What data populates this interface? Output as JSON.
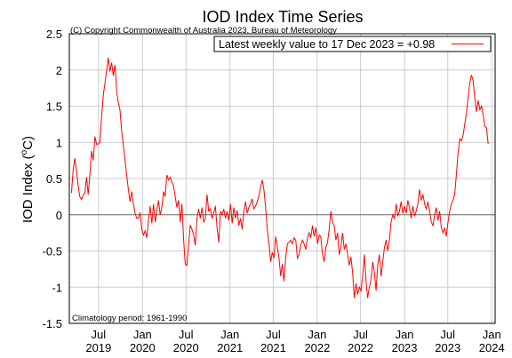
{
  "chart_data": {
    "type": "line",
    "title": "IOD Index Time Series",
    "copyright": "(C) Copyright Commonwealth of Australia 2023, Bureau of Meteorology",
    "ylabel": "IOD Index (°C)",
    "ylabel_parts": {
      "prefix": "IOD Index (",
      "sup": "o",
      "suffix": "C)"
    },
    "climatology_note": "Climatology period: 1961-1990",
    "legend": "Latest weekly value to 17 Dec 2023 = +0.98",
    "ylim": [
      -1.5,
      2.5
    ],
    "y_ticks": [
      -1.5,
      -1,
      -0.5,
      0,
      0.5,
      1,
      1.5,
      2,
      2.5
    ],
    "y_tick_labels": [
      "-1.5",
      "-1",
      "-0.5",
      "0",
      "0.5",
      "1",
      "1.5",
      "2",
      "2.5"
    ],
    "xlim": [
      "2019-03-01",
      "2024-01-15"
    ],
    "x_ticks": [
      {
        "date": "2019-07-01",
        "top": "Jul",
        "bottom": "2019"
      },
      {
        "date": "2020-01-01",
        "top": "Jan",
        "bottom": "2020"
      },
      {
        "date": "2020-07-01",
        "top": "Jul",
        "bottom": "2020"
      },
      {
        "date": "2021-01-01",
        "top": "Jan",
        "bottom": "2021"
      },
      {
        "date": "2021-07-01",
        "top": "Jul",
        "bottom": "2021"
      },
      {
        "date": "2022-01-01",
        "top": "Jan",
        "bottom": "2022"
      },
      {
        "date": "2022-07-01",
        "top": "Jul",
        "bottom": "2022"
      },
      {
        "date": "2023-01-01",
        "top": "Jan",
        "bottom": "2023"
      },
      {
        "date": "2023-07-01",
        "top": "Jul",
        "bottom": "2023"
      },
      {
        "date": "2024-01-01",
        "top": "Jan",
        "bottom": "2024"
      }
    ],
    "grid": true,
    "legend_position": "top-right",
    "colors": {
      "series": "#ff0000",
      "grid": "#cccccc",
      "zero_line": "#666666"
    },
    "series": [
      {
        "name": "Latest weekly value to 17 Dec 2023 = +0.98",
        "points": [
          [
            "2019-03-10",
            0.3
          ],
          [
            "2019-03-17",
            0.62
          ],
          [
            "2019-03-24",
            0.78
          ],
          [
            "2019-03-31",
            0.6
          ],
          [
            "2019-04-07",
            0.4
          ],
          [
            "2019-04-14",
            0.25
          ],
          [
            "2019-04-21",
            0.21
          ],
          [
            "2019-04-28",
            0.27
          ],
          [
            "2019-05-05",
            0.3
          ],
          [
            "2019-05-12",
            0.52
          ],
          [
            "2019-05-19",
            0.28
          ],
          [
            "2019-05-26",
            0.55
          ],
          [
            "2019-06-02",
            0.88
          ],
          [
            "2019-06-09",
            0.75
          ],
          [
            "2019-06-16",
            1.08
          ],
          [
            "2019-06-23",
            0.97
          ],
          [
            "2019-06-30",
            0.98
          ],
          [
            "2019-07-07",
            1.0
          ],
          [
            "2019-07-14",
            1.35
          ],
          [
            "2019-07-21",
            1.65
          ],
          [
            "2019-07-28",
            1.82
          ],
          [
            "2019-08-04",
            2.0
          ],
          [
            "2019-08-11",
            2.17
          ],
          [
            "2019-08-18",
            1.98
          ],
          [
            "2019-08-25",
            2.1
          ],
          [
            "2019-09-01",
            1.92
          ],
          [
            "2019-09-08",
            2.07
          ],
          [
            "2019-09-15",
            1.7
          ],
          [
            "2019-09-22",
            1.55
          ],
          [
            "2019-09-29",
            1.45
          ],
          [
            "2019-10-06",
            1.15
          ],
          [
            "2019-10-13",
            0.95
          ],
          [
            "2019-10-20",
            0.75
          ],
          [
            "2019-10-27",
            0.55
          ],
          [
            "2019-11-03",
            0.35
          ],
          [
            "2019-11-10",
            0.18
          ],
          [
            "2019-11-17",
            0.32
          ],
          [
            "2019-11-24",
            0.15
          ],
          [
            "2019-12-01",
            0.02
          ],
          [
            "2019-12-08",
            -0.05
          ],
          [
            "2019-12-15",
            -0.05
          ],
          [
            "2019-12-22",
            0.03
          ],
          [
            "2019-12-29",
            -0.2
          ],
          [
            "2020-01-05",
            -0.28
          ],
          [
            "2020-01-12",
            -0.22
          ],
          [
            "2020-01-19",
            -0.32
          ],
          [
            "2020-01-26",
            -0.08
          ],
          [
            "2020-02-02",
            0.12
          ],
          [
            "2020-02-09",
            -0.12
          ],
          [
            "2020-02-16",
            0.15
          ],
          [
            "2020-02-23",
            -0.1
          ],
          [
            "2020-03-01",
            0.05
          ],
          [
            "2020-03-08",
            0.2
          ],
          [
            "2020-03-15",
            0.0
          ],
          [
            "2020-03-22",
            0.1
          ],
          [
            "2020-03-29",
            0.32
          ],
          [
            "2020-04-05",
            0.25
          ],
          [
            "2020-04-12",
            0.55
          ],
          [
            "2020-04-19",
            0.48
          ],
          [
            "2020-04-26",
            0.52
          ],
          [
            "2020-05-03",
            0.45
          ],
          [
            "2020-05-10",
            0.4
          ],
          [
            "2020-05-17",
            0.25
          ],
          [
            "2020-05-24",
            0.1
          ],
          [
            "2020-05-31",
            0.2
          ],
          [
            "2020-06-07",
            -0.1
          ],
          [
            "2020-06-14",
            0.15
          ],
          [
            "2020-06-21",
            -0.35
          ],
          [
            "2020-06-28",
            -0.68
          ],
          [
            "2020-07-05",
            -0.7
          ],
          [
            "2020-07-12",
            -0.4
          ],
          [
            "2020-07-19",
            -0.15
          ],
          [
            "2020-07-26",
            -0.2
          ],
          [
            "2020-08-02",
            -0.28
          ],
          [
            "2020-08-09",
            -0.42
          ],
          [
            "2020-08-16",
            -0.05
          ],
          [
            "2020-08-23",
            0.08
          ],
          [
            "2020-08-30",
            -0.05
          ],
          [
            "2020-09-06",
            0.1
          ],
          [
            "2020-09-13",
            -0.1
          ],
          [
            "2020-09-20",
            -0.05
          ],
          [
            "2020-09-27",
            0.28
          ],
          [
            "2020-10-04",
            0.05
          ],
          [
            "2020-10-11",
            0.08
          ],
          [
            "2020-10-18",
            -0.05
          ],
          [
            "2020-10-25",
            0.02
          ],
          [
            "2020-11-01",
            0.12
          ],
          [
            "2020-11-08",
            -0.18
          ],
          [
            "2020-11-15",
            -0.38
          ],
          [
            "2020-11-22",
            0.05
          ],
          [
            "2020-11-29",
            0.0
          ],
          [
            "2020-12-06",
            0.08
          ],
          [
            "2020-12-13",
            -0.05
          ],
          [
            "2020-12-20",
            0.05
          ],
          [
            "2020-12-27",
            -0.08
          ],
          [
            "2021-01-03",
            0.15
          ],
          [
            "2021-01-10",
            -0.12
          ],
          [
            "2021-01-17",
            0.1
          ],
          [
            "2021-01-24",
            -0.05
          ],
          [
            "2021-01-31",
            0.06
          ],
          [
            "2021-02-07",
            -0.15
          ],
          [
            "2021-02-14",
            -0.05
          ],
          [
            "2021-02-21",
            -0.2
          ],
          [
            "2021-02-28",
            0.05
          ],
          [
            "2021-03-07",
            0.18
          ],
          [
            "2021-03-14",
            0.02
          ],
          [
            "2021-03-21",
            0.1
          ],
          [
            "2021-03-28",
            0.15
          ],
          [
            "2021-04-04",
            0.22
          ],
          [
            "2021-04-11",
            0.08
          ],
          [
            "2021-04-18",
            0.12
          ],
          [
            "2021-04-25",
            0.18
          ],
          [
            "2021-05-02",
            0.26
          ],
          [
            "2021-05-09",
            0.38
          ],
          [
            "2021-05-16",
            0.48
          ],
          [
            "2021-05-23",
            0.35
          ],
          [
            "2021-05-30",
            0.1
          ],
          [
            "2021-06-06",
            -0.2
          ],
          [
            "2021-06-13",
            -0.4
          ],
          [
            "2021-06-20",
            -0.65
          ],
          [
            "2021-06-27",
            -0.52
          ],
          [
            "2021-07-04",
            -0.6
          ],
          [
            "2021-07-11",
            -0.3
          ],
          [
            "2021-07-18",
            -0.45
          ],
          [
            "2021-07-25",
            -0.6
          ],
          [
            "2021-08-01",
            -0.85
          ],
          [
            "2021-08-08",
            -0.68
          ],
          [
            "2021-08-15",
            -0.92
          ],
          [
            "2021-08-22",
            -0.6
          ],
          [
            "2021-08-29",
            -0.4
          ],
          [
            "2021-09-05",
            -0.38
          ],
          [
            "2021-09-12",
            -0.35
          ],
          [
            "2021-09-19",
            -0.4
          ],
          [
            "2021-09-26",
            -0.32
          ],
          [
            "2021-10-03",
            -0.35
          ],
          [
            "2021-10-10",
            -0.6
          ],
          [
            "2021-10-17",
            -0.55
          ],
          [
            "2021-10-24",
            -0.42
          ],
          [
            "2021-10-31",
            -0.35
          ],
          [
            "2021-11-07",
            -0.4
          ],
          [
            "2021-11-14",
            -0.48
          ],
          [
            "2021-11-21",
            -0.32
          ],
          [
            "2021-11-28",
            -0.25
          ],
          [
            "2021-12-05",
            -0.32
          ],
          [
            "2021-12-12",
            -0.15
          ],
          [
            "2021-12-19",
            -0.3
          ],
          [
            "2021-12-26",
            -0.18
          ],
          [
            "2022-01-02",
            -0.4
          ],
          [
            "2022-01-09",
            -0.28
          ],
          [
            "2022-01-16",
            -0.3
          ],
          [
            "2022-01-23",
            -0.55
          ],
          [
            "2022-01-30",
            -0.65
          ],
          [
            "2022-02-06",
            -0.45
          ],
          [
            "2022-02-13",
            -0.38
          ],
          [
            "2022-02-20",
            -0.2
          ],
          [
            "2022-02-27",
            0.05
          ],
          [
            "2022-03-06",
            -0.1
          ],
          [
            "2022-03-13",
            -0.15
          ],
          [
            "2022-03-20",
            -0.35
          ],
          [
            "2022-03-27",
            -0.25
          ],
          [
            "2022-04-03",
            -0.55
          ],
          [
            "2022-04-10",
            -0.45
          ],
          [
            "2022-04-17",
            -0.25
          ],
          [
            "2022-04-24",
            -0.48
          ],
          [
            "2022-05-01",
            -0.4
          ],
          [
            "2022-05-08",
            -0.55
          ],
          [
            "2022-05-15",
            -0.7
          ],
          [
            "2022-05-22",
            -0.58
          ],
          [
            "2022-05-29",
            -0.8
          ],
          [
            "2022-06-05",
            -1.15
          ],
          [
            "2022-06-12",
            -0.95
          ],
          [
            "2022-06-19",
            -1.1
          ],
          [
            "2022-06-26",
            -1.0
          ],
          [
            "2022-07-03",
            -1.05
          ],
          [
            "2022-07-10",
            -0.85
          ],
          [
            "2022-07-17",
            -0.55
          ],
          [
            "2022-07-24",
            -0.92
          ],
          [
            "2022-07-31",
            -1.15
          ],
          [
            "2022-08-07",
            -1.0
          ],
          [
            "2022-08-14",
            -0.9
          ],
          [
            "2022-08-21",
            -0.65
          ],
          [
            "2022-08-28",
            -0.8
          ],
          [
            "2022-09-04",
            -1.05
          ],
          [
            "2022-09-11",
            -0.7
          ],
          [
            "2022-09-18",
            -0.55
          ],
          [
            "2022-09-25",
            -0.85
          ],
          [
            "2022-10-02",
            -0.65
          ],
          [
            "2022-10-09",
            -0.45
          ],
          [
            "2022-10-16",
            -0.35
          ],
          [
            "2022-10-23",
            -0.5
          ],
          [
            "2022-10-30",
            -0.35
          ],
          [
            "2022-11-06",
            -0.1
          ],
          [
            "2022-11-13",
            0.0
          ],
          [
            "2022-11-20",
            -0.05
          ],
          [
            "2022-11-27",
            0.15
          ],
          [
            "2022-12-04",
            -0.02
          ],
          [
            "2022-12-11",
            0.05
          ],
          [
            "2022-12-18",
            0.18
          ],
          [
            "2022-12-25",
            0.02
          ],
          [
            "2023-01-01",
            0.12
          ],
          [
            "2023-01-08",
            0.02
          ],
          [
            "2023-01-15",
            0.2
          ],
          [
            "2023-01-22",
            0.1
          ],
          [
            "2023-01-29",
            -0.05
          ],
          [
            "2023-02-05",
            0.12
          ],
          [
            "2023-02-12",
            -0.02
          ],
          [
            "2023-02-19",
            0.05
          ],
          [
            "2023-02-26",
            0.15
          ],
          [
            "2023-03-05",
            0.35
          ],
          [
            "2023-03-12",
            0.2
          ],
          [
            "2023-03-19",
            0.28
          ],
          [
            "2023-03-26",
            0.15
          ],
          [
            "2023-04-02",
            0.08
          ],
          [
            "2023-04-09",
            0.18
          ],
          [
            "2023-04-16",
            0.05
          ],
          [
            "2023-04-23",
            -0.1
          ],
          [
            "2023-04-30",
            -0.15
          ],
          [
            "2023-05-07",
            0.0
          ],
          [
            "2023-05-14",
            0.1
          ],
          [
            "2023-05-21",
            -0.08
          ],
          [
            "2023-05-28",
            0.05
          ],
          [
            "2023-06-04",
            -0.18
          ],
          [
            "2023-06-11",
            -0.25
          ],
          [
            "2023-06-18",
            -0.18
          ],
          [
            "2023-06-25",
            -0.3
          ],
          [
            "2023-07-02",
            -0.1
          ],
          [
            "2023-07-09",
            0.05
          ],
          [
            "2023-07-16",
            0.15
          ],
          [
            "2023-07-23",
            0.2
          ],
          [
            "2023-07-30",
            0.28
          ],
          [
            "2023-08-06",
            0.55
          ],
          [
            "2023-08-13",
            0.85
          ],
          [
            "2023-08-20",
            1.05
          ],
          [
            "2023-08-27",
            1.02
          ],
          [
            "2023-09-03",
            1.1
          ],
          [
            "2023-09-10",
            1.25
          ],
          [
            "2023-09-17",
            1.4
          ],
          [
            "2023-09-24",
            1.62
          ],
          [
            "2023-10-01",
            1.82
          ],
          [
            "2023-10-08",
            1.93
          ],
          [
            "2023-10-15",
            1.85
          ],
          [
            "2023-10-22",
            1.62
          ],
          [
            "2023-10-29",
            1.42
          ],
          [
            "2023-11-05",
            1.58
          ],
          [
            "2023-11-12",
            1.45
          ],
          [
            "2023-11-19",
            1.5
          ],
          [
            "2023-11-26",
            1.38
          ],
          [
            "2023-12-03",
            1.22
          ],
          [
            "2023-12-10",
            1.2
          ],
          [
            "2023-12-17",
            0.98
          ]
        ]
      }
    ]
  }
}
